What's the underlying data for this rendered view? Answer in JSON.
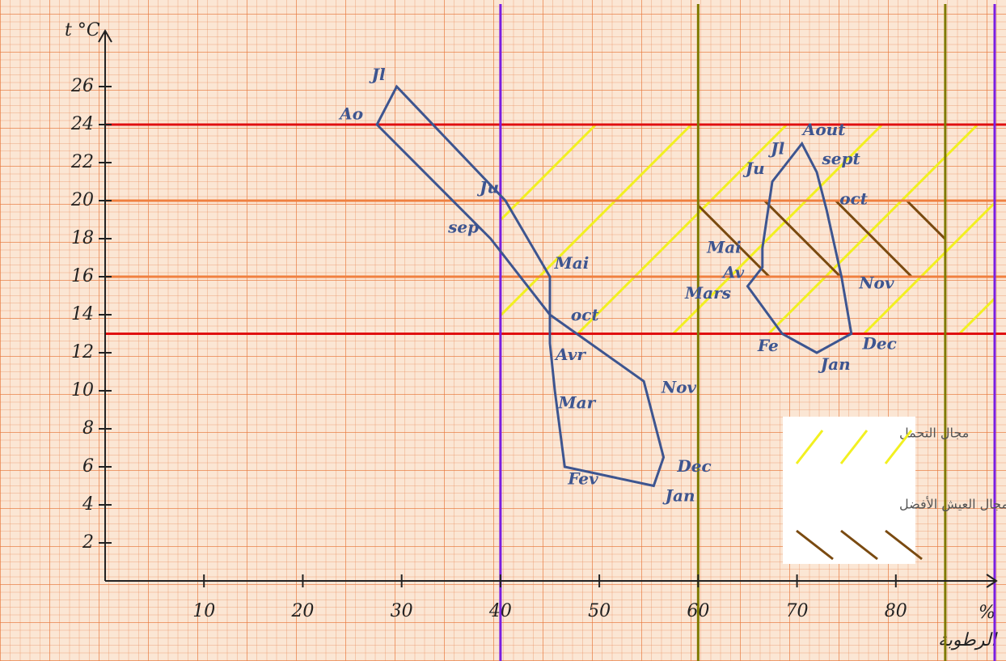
{
  "chart_data": {
    "type": "line",
    "closed": true,
    "y_label": "t °C",
    "x_label": "%",
    "x_label_2": "الرطوبة",
    "xlim": [
      0,
      90
    ],
    "ylim": [
      0,
      28
    ],
    "xticks": [
      10,
      20,
      30,
      40,
      50,
      60,
      70,
      80
    ],
    "yticks": [
      2,
      4,
      6,
      8,
      10,
      12,
      14,
      16,
      18,
      20,
      22,
      24,
      26
    ],
    "series": [
      {
        "color": "#3d5590",
        "labels": [
          "Jan",
          "Fev",
          "Mar",
          "Avr",
          "Mai",
          "Ju",
          "Jl",
          "Ao",
          "sep",
          "oct",
          "Nov",
          "Dec"
        ],
        "x": [
          55.5,
          46.5,
          45.5,
          45,
          45,
          40.5,
          29.5,
          27.5,
          39,
          45,
          54.5,
          56.5
        ],
        "y": [
          5,
          6,
          10,
          12.5,
          16,
          20,
          26,
          24,
          18,
          14,
          10.5,
          6.5
        ]
      },
      {
        "color": "#3d5590",
        "labels": [
          "Jan",
          "Fe",
          "Mars",
          "Av",
          "Mai",
          "Ju",
          "Jl",
          "Aout",
          "sept",
          "oct",
          "Nov",
          "Dec"
        ],
        "x": [
          72,
          68.5,
          65,
          66.5,
          66.5,
          67.5,
          69,
          70.5,
          72,
          73,
          74.5,
          75.5
        ],
        "y": [
          12,
          13,
          15.5,
          16.5,
          17.5,
          21,
          22,
          23,
          21.5,
          19.5,
          16,
          13
        ]
      }
    ],
    "hlines": [
      {
        "value": 24,
        "color": "#e01010"
      },
      {
        "value": 20,
        "color": "#f08040"
      },
      {
        "value": 16,
        "color": "#f08040"
      },
      {
        "value": 13,
        "color": "#e01010"
      }
    ],
    "vlines": [
      {
        "value": 40,
        "color": "#7a1ee0"
      },
      {
        "value": 60,
        "color": "#7f7a00"
      },
      {
        "value": 85,
        "color": "#7f7a00"
      },
      {
        "value": 90,
        "color": "#7a1ee0"
      }
    ],
    "zones": [
      {
        "label": "مجال التحمل",
        "color": "#f2f020",
        "direction": "up",
        "x": [
          40,
          90
        ],
        "y": [
          13,
          24
        ]
      },
      {
        "label": "مجال العيش الأفضل",
        "color": "#7a4a10",
        "direction": "down",
        "x": [
          60,
          85
        ],
        "y": [
          16,
          20
        ]
      }
    ]
  }
}
